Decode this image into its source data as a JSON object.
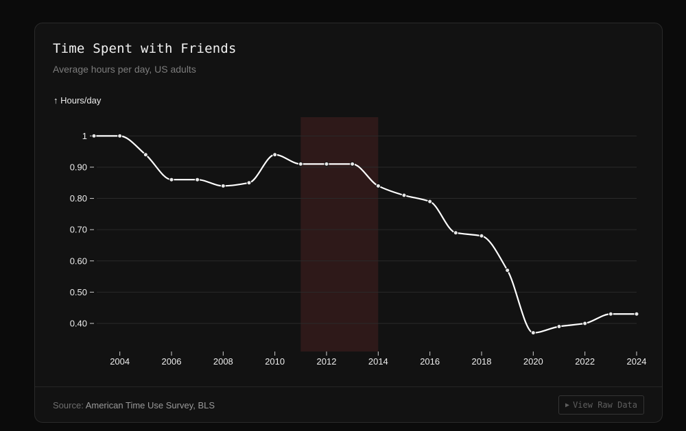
{
  "card": {
    "title": "Time Spent with Friends",
    "subtitle": "Average hours per day, US adults"
  },
  "footer": {
    "source_prefix": "Source: ",
    "source_name": "American Time Use Survey, BLS",
    "raw_button_label": "View Raw Data",
    "raw_button_icon": "play-icon"
  },
  "colors": {
    "background": "#121212",
    "line": "#ffffff",
    "highlight_band": "#2e1919",
    "grid": "#2a2a2a"
  },
  "chart_data": {
    "type": "line",
    "ylabel": "↑ Hours/day",
    "ylim": [
      0.31,
      1.06
    ],
    "xlim": [
      2003,
      2024
    ],
    "y_ticks": [
      1,
      0.9,
      0.8,
      0.7,
      0.6,
      0.5,
      0.4
    ],
    "y_tick_labels": [
      "1",
      "0.90",
      "0.80",
      "0.70",
      "0.60",
      "0.50",
      "0.40"
    ],
    "x_ticks": [
      2004,
      2006,
      2008,
      2010,
      2012,
      2014,
      2016,
      2018,
      2020,
      2022,
      2024
    ],
    "grid": "horizontal",
    "highlight_range": [
      2011,
      2014
    ],
    "series": [
      {
        "x": [
          2003,
          2004,
          2005,
          2006,
          2007,
          2008,
          2009,
          2010,
          2011,
          2012,
          2013,
          2014,
          2015,
          2016,
          2017,
          2018,
          2019,
          2020,
          2021,
          2022,
          2023,
          2024
        ],
        "values": [
          1.0,
          1.0,
          0.94,
          0.86,
          0.86,
          0.84,
          0.85,
          0.94,
          0.91,
          0.91,
          0.91,
          0.84,
          0.81,
          0.79,
          0.69,
          0.68,
          0.57,
          0.37,
          0.39,
          0.4,
          0.43,
          0.43
        ]
      }
    ]
  }
}
